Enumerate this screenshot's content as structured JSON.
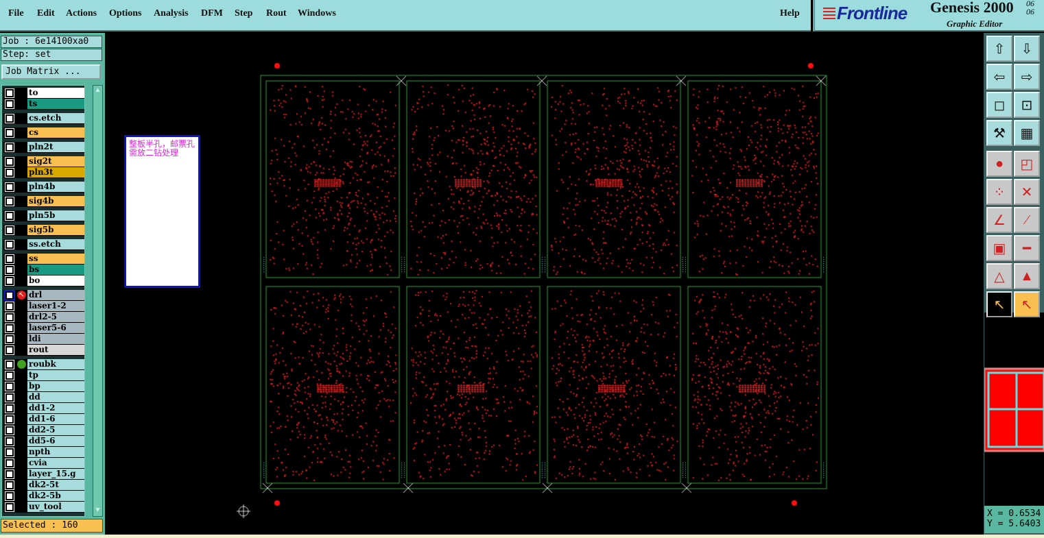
{
  "menu": {
    "items": [
      "File",
      "Edit",
      "Actions",
      "Options",
      "Analysis",
      "DFM",
      "Step",
      "Rout",
      "Windows"
    ],
    "help": "Help"
  },
  "brand": {
    "logo": "Frontline",
    "product": "Genesis 2000",
    "version": "06 06",
    "subtitle": "Graphic Editor"
  },
  "job": {
    "label": "Job : 6e14100xa0",
    "step": "Step: set",
    "matrix_button": "Job Matrix ..."
  },
  "layer_groups": [
    [
      {
        "name": "to",
        "color": "#ffffff"
      },
      {
        "name": "ts",
        "color": "#1a9a80"
      }
    ],
    [
      {
        "name": "cs.etch",
        "color": "#a8dcdc"
      }
    ],
    [
      {
        "name": "cs",
        "color": "#f8c050"
      }
    ],
    [
      {
        "name": "pln2t",
        "color": "#a8dcdc"
      }
    ],
    [
      {
        "name": "sig2t",
        "color": "#f8c050"
      },
      {
        "name": "pln3t",
        "color": "#d8a800"
      }
    ],
    [
      {
        "name": "pln4b",
        "color": "#a8dcdc"
      }
    ],
    [
      {
        "name": "sig4b",
        "color": "#f8c050"
      }
    ],
    [
      {
        "name": "pln5b",
        "color": "#a8dcdc"
      }
    ],
    [
      {
        "name": "sig5b",
        "color": "#f8c050"
      }
    ],
    [
      {
        "name": "ss.etch",
        "color": "#a8dcdc"
      }
    ],
    [
      {
        "name": "ss",
        "color": "#f8c050"
      },
      {
        "name": "bs",
        "color": "#1a9a80"
      },
      {
        "name": "bo",
        "color": "#ffffff"
      }
    ],
    [
      {
        "name": "drl",
        "color": "#a8b8c0",
        "icon": "work-layer-arrow-icon",
        "active": true
      },
      {
        "name": "laser1-2",
        "color": "#a8b8c0"
      },
      {
        "name": "drl2-5",
        "color": "#a8b8c0"
      },
      {
        "name": "laser5-6",
        "color": "#a8b8c0"
      },
      {
        "name": "ldi",
        "color": "#a8b8c0"
      },
      {
        "name": "rout",
        "color": "#d8d8d8"
      }
    ],
    [
      {
        "name": "roubk",
        "color": "#a8dcdc",
        "icon": "green-dot-icon"
      },
      {
        "name": "tp",
        "color": "#a8dcdc"
      },
      {
        "name": "bp",
        "color": "#a8dcdc"
      },
      {
        "name": "dd",
        "color": "#a8dcdc"
      },
      {
        "name": "dd1-2",
        "color": "#a8dcdc"
      },
      {
        "name": "dd1-6",
        "color": "#a8dcdc"
      },
      {
        "name": "dd2-5",
        "color": "#a8dcdc"
      },
      {
        "name": "dd5-6",
        "color": "#a8dcdc"
      },
      {
        "name": "npth",
        "color": "#a8dcdc"
      },
      {
        "name": "cvia",
        "color": "#a8dcdc"
      },
      {
        "name": "layer_15.g",
        "color": "#a8dcdc"
      },
      {
        "name": "dk2-5t",
        "color": "#a8dcdc"
      },
      {
        "name": "dk2-5b",
        "color": "#a8dcdc"
      },
      {
        "name": "uv_tool",
        "color": "#a8dcdc"
      }
    ]
  ],
  "status": {
    "selected": "Selected : 160"
  },
  "note": {
    "text": "整板半孔，邮票孔需放二钻处理"
  },
  "coords": {
    "x": "X = 0.6534",
    "y": "Y = 5.6403"
  },
  "panel": {
    "rows": 2,
    "cols": 4,
    "feature_color": "#e02020",
    "outline_color": "#40a040"
  },
  "toolbar": [
    "move-up-icon",
    "move-down-icon",
    "move-left-icon",
    "move-right-icon",
    "zoom-fit-icon",
    "zoom-center-icon",
    "measure-tool-icon",
    "grid-icon",
    "select-feature-icon",
    "window-select-icon",
    "connect-nodes-icon",
    "delete-node-icon",
    "angle-line-icon",
    "line-arrow-icon",
    "move-pad-icon",
    "segment-icon",
    "triangle-icon",
    "arc-triangle-icon",
    "pointer-icon",
    "pointer-select-icon"
  ]
}
